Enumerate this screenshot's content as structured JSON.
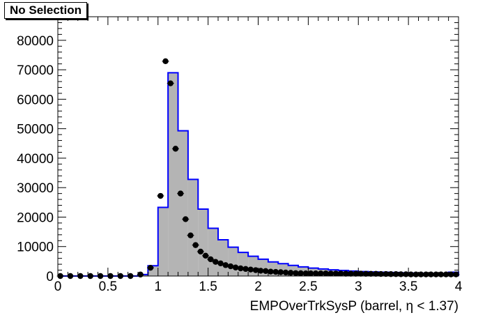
{
  "chart_data": {
    "type": "bar",
    "title": "No Selection",
    "xlabel": "EMPOverTrkSysP (barrel,   η < 1.37)",
    "ylabel": "",
    "xlim": [
      0,
      4
    ],
    "ylim": [
      0,
      88000
    ],
    "grid": false,
    "legend": "none",
    "x_ticks": [
      0,
      0.5,
      1,
      1.5,
      2,
      2.5,
      3,
      3.5,
      4
    ],
    "x_tick_labels": [
      "0",
      "0.5",
      "1",
      "1.5",
      "2",
      "2.5",
      "3",
      "3.5",
      "4"
    ],
    "y_ticks": [
      0,
      10000,
      20000,
      30000,
      40000,
      50000,
      60000,
      70000,
      80000
    ],
    "y_tick_labels": [
      "0",
      "10000",
      "20000",
      "30000",
      "40000",
      "50000",
      "60000",
      "70000",
      "80000"
    ],
    "bin_width": 0.1,
    "series": [
      {
        "kind": "histogram",
        "color": "#0000ff",
        "fill": "#b4b4b4",
        "x": [
          0.0,
          0.1,
          0.2,
          0.3,
          0.4,
          0.5,
          0.6,
          0.7,
          0.8,
          0.9,
          1.0,
          1.1,
          1.2,
          1.3,
          1.4,
          1.5,
          1.6,
          1.7,
          1.8,
          1.9,
          2.0,
          2.1,
          2.2,
          2.3,
          2.4,
          2.5,
          2.6,
          2.7,
          2.8,
          2.9,
          3.0,
          3.1,
          3.2,
          3.3,
          3.4,
          3.5,
          3.6,
          3.7,
          3.8,
          3.9
        ],
        "values": [
          0,
          0,
          0,
          0,
          0,
          0,
          0,
          0,
          500,
          3500,
          23300,
          69000,
          49300,
          32800,
          22700,
          16200,
          12300,
          9800,
          8000,
          6700,
          5700,
          4800,
          4200,
          3600,
          3100,
          2700,
          2400,
          2100,
          1900,
          1700,
          1500,
          1400,
          1300,
          1200,
          1100,
          1000,
          950,
          900,
          850,
          1300
        ]
      },
      {
        "kind": "points",
        "color": "#000000",
        "x": [
          0.025,
          0.125,
          0.225,
          0.325,
          0.425,
          0.525,
          0.625,
          0.725,
          0.825,
          0.925,
          1.025,
          1.075,
          1.125,
          1.175,
          1.225,
          1.275,
          1.325,
          1.375,
          1.425,
          1.475,
          1.525,
          1.575,
          1.625,
          1.675,
          1.725,
          1.775,
          1.825,
          1.875,
          1.925,
          1.975,
          2.025,
          2.075,
          2.125,
          2.175,
          2.225,
          2.275,
          2.325,
          2.375,
          2.425,
          2.475,
          2.525,
          2.575,
          2.625,
          2.675,
          2.725,
          2.775,
          2.825,
          2.875,
          2.925,
          2.975,
          3.025,
          3.075,
          3.125,
          3.175,
          3.225,
          3.275,
          3.325,
          3.375,
          3.425,
          3.475,
          3.525,
          3.575,
          3.625,
          3.675,
          3.725,
          3.775,
          3.825,
          3.875,
          3.925,
          3.975
        ],
        "values": [
          0,
          0,
          0,
          0,
          0,
          0,
          0,
          0,
          500,
          2800,
          27200,
          72900,
          65400,
          43200,
          28000,
          19300,
          13800,
          10500,
          8300,
          6900,
          5700,
          4800,
          4300,
          3700,
          3300,
          2900,
          2600,
          2400,
          2200,
          2000,
          1800,
          1700,
          1500,
          1400,
          1300,
          1200,
          1100,
          1000,
          950,
          900,
          900,
          900,
          900,
          900,
          850,
          850,
          850,
          800,
          800,
          800,
          800,
          750,
          750,
          750,
          700,
          700,
          650,
          650,
          600,
          600,
          550,
          550,
          550,
          550,
          550,
          550,
          550,
          550,
          550,
          550
        ]
      }
    ]
  }
}
